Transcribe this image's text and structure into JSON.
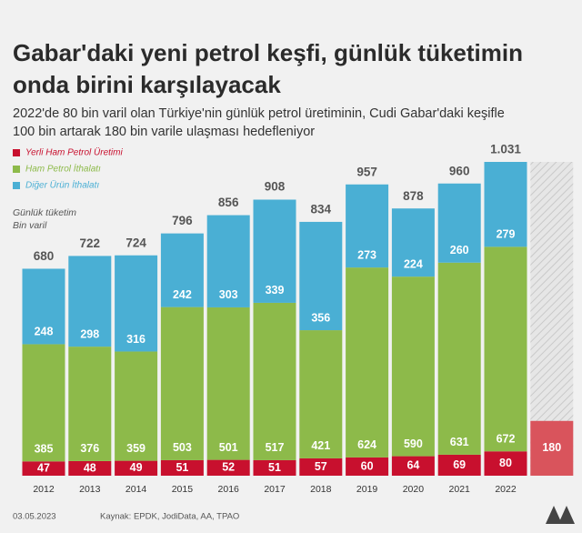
{
  "chart_data": {
    "type": "stacked_bar",
    "title": [
      "Gabar'daki yeni petrol keşfi, günlük tüketimin",
      "onda birini karşılayacak"
    ],
    "subtitle": [
      "2022'de 80 bin varil olan Türkiye'nin günlük petrol üretiminin, Cudi Gabar'daki keşifle",
      "100 bin artarak 180 bin varile ulaşması hedefleniyor"
    ],
    "y_label": [
      "Günlük tüketim",
      "Bin varil"
    ],
    "categories": [
      "2012",
      "2013",
      "2014",
      "2015",
      "2016",
      "2017",
      "2018",
      "2019",
      "2020",
      "2021",
      "2022",
      null
    ],
    "series": [
      {
        "name": "Yerli Ham Petrol Üretimi",
        "color": "#c8102e",
        "colors": [
          "#c8102e",
          "#c8102e",
          "#c8102e",
          "#c8102e",
          "#c8102e",
          "#c8102e",
          "#c8102e",
          "#c8102e",
          "#c8102e",
          "#c8102e",
          "#c8102e",
          "#d9545c"
        ],
        "values": [
          47,
          48,
          49,
          51,
          52,
          51,
          57,
          60,
          64,
          69,
          80,
          180
        ]
      },
      {
        "name": "Ham Petrol İthalatı",
        "color": "#8dba4a",
        "values": [
          385,
          376,
          359,
          503,
          501,
          517,
          421,
          624,
          590,
          631,
          672,
          null
        ]
      },
      {
        "name": "Diğer Ürün İthalatı",
        "color": "#4aafd4",
        "values": [
          248,
          298,
          316,
          242,
          303,
          339,
          356,
          273,
          224,
          260,
          279,
          null
        ]
      }
    ],
    "totals": {
      "values": [
        680,
        722,
        724,
        796,
        856,
        908,
        834,
        957,
        878,
        960,
        1031,
        null
      ],
      "value_labels": [
        "680",
        "722",
        "724",
        "796",
        "856",
        "908",
        "834",
        "957",
        "878",
        "960",
        "1.031",
        null
      ]
    },
    "date": "03.05.2023",
    "source": "Kaynak: EPDK, JodiData, AA, TPAO"
  }
}
